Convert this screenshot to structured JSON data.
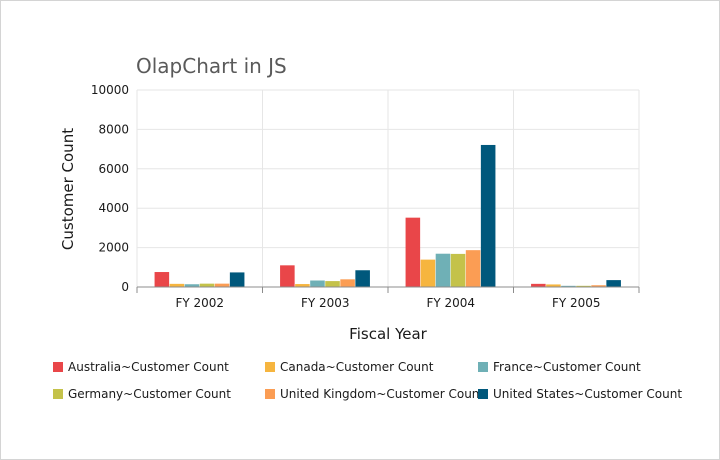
{
  "chart_data": {
    "type": "bar",
    "title": "OlapChart in JS",
    "xlabel": "Fiscal Year",
    "ylabel": "Customer Count",
    "categories": [
      "FY 2002",
      "FY 2003",
      "FY 2004",
      "FY 2005"
    ],
    "ylim": [
      0,
      10000
    ],
    "yticks": [
      0,
      2000,
      4000,
      6000,
      8000,
      10000
    ],
    "grid": true,
    "legend_position": "bottom",
    "series": [
      {
        "name": "Australia~Customer Count",
        "color": "#e94649",
        "values": [
          760,
          1100,
          3520,
          160
        ]
      },
      {
        "name": "Canada~Customer Count",
        "color": "#f6b53f",
        "values": [
          160,
          150,
          1390,
          130
        ]
      },
      {
        "name": "France~Customer Count",
        "color": "#6fb0b6",
        "values": [
          140,
          330,
          1690,
          60
        ]
      },
      {
        "name": "Germany~Customer Count",
        "color": "#c4c24a",
        "values": [
          170,
          300,
          1680,
          60
        ]
      },
      {
        "name": "United Kingdom~Customer Count",
        "color": "#fb9d54",
        "values": [
          170,
          390,
          1870,
          90
        ]
      },
      {
        "name": "United States~Customer Count",
        "color": "#00587c",
        "values": [
          740,
          850,
          7210,
          350
        ]
      }
    ]
  }
}
